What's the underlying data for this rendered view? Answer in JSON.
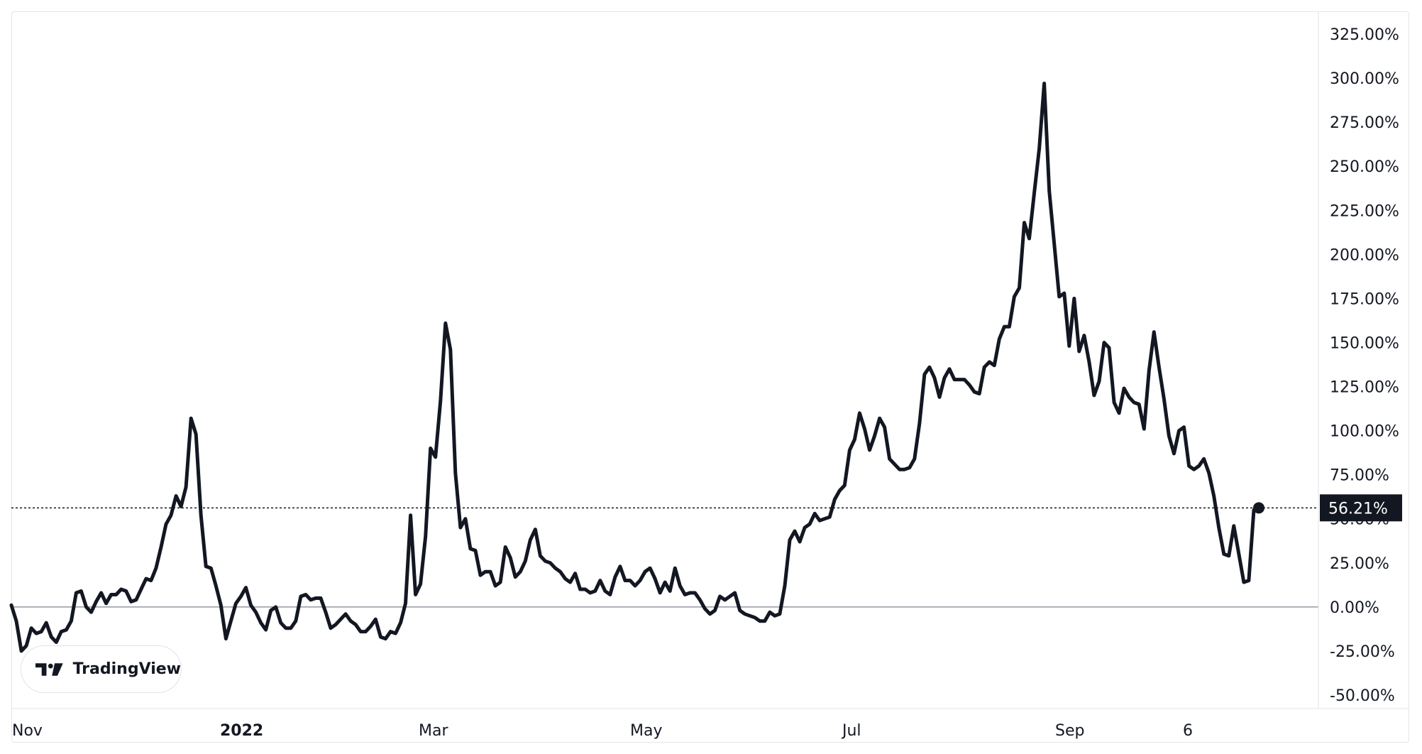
{
  "chart_data": {
    "type": "line",
    "title": "",
    "xlabel": "",
    "ylabel": "",
    "ylim": [
      -50,
      325
    ],
    "y_ticks": [
      "325.00%",
      "300.00%",
      "275.00%",
      "250.00%",
      "225.00%",
      "200.00%",
      "175.00%",
      "150.00%",
      "125.00%",
      "100.00%",
      "75.00%",
      "50.00%",
      "25.00%",
      "0.00%",
      "-25.00%",
      "-50.00%"
    ],
    "y_tick_values": [
      325,
      300,
      275,
      250,
      225,
      200,
      175,
      150,
      125,
      100,
      75,
      50,
      25,
      0,
      -25,
      -50
    ],
    "x_ticks": [
      {
        "label": "Nov",
        "date": "2021-11-01",
        "bold": false
      },
      {
        "label": "2022",
        "date": "2022-01-01",
        "bold": true
      },
      {
        "label": "Mar",
        "date": "2022-03-01",
        "bold": false
      },
      {
        "label": "May",
        "date": "2022-05-01",
        "bold": false
      },
      {
        "label": "Jul",
        "date": "2022-07-01",
        "bold": false
      },
      {
        "label": "Sep",
        "date": "2022-09-01",
        "bold": false
      },
      {
        "label": "6",
        "date": "2022-10-06",
        "bold": false
      }
    ],
    "x_range": [
      "2021-11-01",
      "2022-11-15"
    ],
    "last_value": 56.21,
    "last_value_label": "56.21%",
    "series_points": [
      [
        "2021-11-01",
        1
      ],
      [
        "2021-11-03",
        -8
      ],
      [
        "2021-11-05",
        -25
      ],
      [
        "2021-11-08",
        -22
      ],
      [
        "2021-11-10",
        -12
      ],
      [
        "2021-11-12",
        -15
      ],
      [
        "2021-11-14",
        -14
      ],
      [
        "2021-11-16",
        -9
      ],
      [
        "2021-11-18",
        -17
      ],
      [
        "2021-11-20",
        -20
      ],
      [
        "2021-11-22",
        -14
      ],
      [
        "2021-11-24",
        -13
      ],
      [
        "2021-11-26",
        -8
      ],
      [
        "2021-11-28",
        8
      ],
      [
        "2021-12-01",
        9
      ],
      [
        "2021-12-03",
        0
      ],
      [
        "2021-12-05",
        -3
      ],
      [
        "2021-12-07",
        3
      ],
      [
        "2021-12-09",
        8
      ],
      [
        "2021-12-10",
        2
      ],
      [
        "2021-12-12",
        7
      ],
      [
        "2021-12-14",
        7
      ],
      [
        "2021-12-16",
        10
      ],
      [
        "2021-12-18",
        9
      ],
      [
        "2021-12-20",
        3
      ],
      [
        "2021-12-22",
        4
      ],
      [
        "2021-12-24",
        10
      ],
      [
        "2021-12-26",
        16
      ],
      [
        "2021-12-28",
        15
      ],
      [
        "2021-12-30",
        22
      ],
      [
        "2022-01-01",
        34
      ],
      [
        "2022-01-03",
        47
      ],
      [
        "2022-01-05",
        52
      ],
      [
        "2022-01-07",
        63
      ],
      [
        "2022-01-09",
        57
      ],
      [
        "2022-01-11",
        68
      ],
      [
        "2022-01-13",
        107
      ],
      [
        "2022-01-15",
        98
      ],
      [
        "2022-01-17",
        52
      ],
      [
        "2022-01-19",
        23
      ],
      [
        "2022-01-21",
        22
      ],
      [
        "2022-01-23",
        12
      ],
      [
        "2022-01-25",
        1
      ],
      [
        "2022-01-27",
        -18
      ],
      [
        "2022-01-29",
        -8
      ],
      [
        "2022-01-31",
        2
      ],
      [
        "2022-02-02",
        6
      ],
      [
        "2022-02-04",
        11
      ],
      [
        "2022-02-06",
        1
      ],
      [
        "2022-02-08",
        -3
      ],
      [
        "2022-02-10",
        -9
      ],
      [
        "2022-02-12",
        -13
      ],
      [
        "2022-02-14",
        -2
      ],
      [
        "2022-02-16",
        0
      ],
      [
        "2022-02-18",
        -9
      ],
      [
        "2022-02-20",
        -12
      ],
      [
        "2022-02-22",
        -12
      ],
      [
        "2022-02-24",
        -8
      ],
      [
        "2022-02-26",
        6
      ],
      [
        "2022-02-28",
        7
      ],
      [
        "2022-03-02",
        4
      ],
      [
        "2022-03-04",
        5
      ],
      [
        "2022-03-06",
        5
      ],
      [
        "2022-03-08",
        -3
      ],
      [
        "2022-03-10",
        -12
      ],
      [
        "2022-03-12",
        -10
      ],
      [
        "2022-03-14",
        -7
      ],
      [
        "2022-03-16",
        -4
      ],
      [
        "2022-03-18",
        -8
      ],
      [
        "2022-03-20",
        -10
      ],
      [
        "2022-03-22",
        -14
      ],
      [
        "2022-03-24",
        -14
      ],
      [
        "2022-03-26",
        -11
      ],
      [
        "2022-03-28",
        -7
      ],
      [
        "2022-03-30",
        -17
      ],
      [
        "2022-04-01",
        -18
      ],
      [
        "2022-04-03",
        -14
      ],
      [
        "2022-04-05",
        -15
      ],
      [
        "2022-04-07",
        -9
      ],
      [
        "2022-04-09",
        2
      ],
      [
        "2022-04-11",
        52
      ],
      [
        "2022-04-13",
        7
      ],
      [
        "2022-04-15",
        13
      ],
      [
        "2022-04-17",
        40
      ],
      [
        "2022-04-19",
        90
      ],
      [
        "2022-04-21",
        85
      ],
      [
        "2022-04-23",
        117
      ],
      [
        "2022-04-25",
        161
      ],
      [
        "2022-04-27",
        146
      ],
      [
        "2022-04-29",
        76
      ],
      [
        "2022-05-01",
        45
      ],
      [
        "2022-05-03",
        50
      ],
      [
        "2022-05-05",
        33
      ],
      [
        "2022-05-07",
        32
      ],
      [
        "2022-05-09",
        18
      ],
      [
        "2022-05-11",
        20
      ],
      [
        "2022-05-13",
        20
      ],
      [
        "2022-05-15",
        12
      ],
      [
        "2022-05-17",
        14
      ],
      [
        "2022-05-19",
        34
      ],
      [
        "2022-05-21",
        28
      ],
      [
        "2022-05-23",
        17
      ],
      [
        "2022-05-25",
        20
      ],
      [
        "2022-05-27",
        26
      ],
      [
        "2022-05-29",
        38
      ],
      [
        "2022-05-31",
        44
      ],
      [
        "2022-06-02",
        29
      ],
      [
        "2022-06-04",
        26
      ],
      [
        "2022-06-06",
        25
      ],
      [
        "2022-06-08",
        22
      ],
      [
        "2022-06-10",
        20
      ],
      [
        "2022-06-12",
        16
      ],
      [
        "2022-06-14",
        14
      ],
      [
        "2022-06-16",
        19
      ],
      [
        "2022-06-18",
        10
      ],
      [
        "2022-06-20",
        10
      ],
      [
        "2022-06-22",
        8
      ],
      [
        "2022-06-24",
        9
      ],
      [
        "2022-06-26",
        15
      ],
      [
        "2022-06-28",
        9
      ],
      [
        "2022-06-30",
        7
      ],
      [
        "2022-07-02",
        17
      ],
      [
        "2022-07-04",
        23
      ],
      [
        "2022-07-06",
        15
      ],
      [
        "2022-07-08",
        15
      ],
      [
        "2022-07-10",
        12
      ],
      [
        "2022-07-12",
        15
      ],
      [
        "2022-07-14",
        20
      ],
      [
        "2022-07-16",
        22
      ],
      [
        "2022-07-18",
        16
      ],
      [
        "2022-07-20",
        8
      ],
      [
        "2022-07-22",
        14
      ],
      [
        "2022-07-24",
        9
      ],
      [
        "2022-07-26",
        22
      ],
      [
        "2022-07-28",
        12
      ],
      [
        "2022-07-30",
        7
      ],
      [
        "2022-08-01",
        8
      ],
      [
        "2022-08-03",
        8
      ],
      [
        "2022-08-05",
        4
      ],
      [
        "2022-08-07",
        -1
      ],
      [
        "2022-08-09",
        -4
      ],
      [
        "2022-08-11",
        -2
      ],
      [
        "2022-08-13",
        6
      ],
      [
        "2022-08-15",
        4
      ],
      [
        "2022-08-17",
        6
      ],
      [
        "2022-08-19",
        8
      ],
      [
        "2022-08-21",
        -2
      ],
      [
        "2022-08-23",
        -4
      ],
      [
        "2022-08-25",
        -5
      ],
      [
        "2022-08-27",
        -6
      ],
      [
        "2022-08-29",
        -8
      ],
      [
        "2022-08-31",
        -8
      ],
      [
        "2022-09-02",
        -3
      ],
      [
        "2022-09-04",
        -5
      ],
      [
        "2022-09-06",
        -4
      ],
      [
        "2022-09-08",
        12
      ],
      [
        "2022-09-10",
        38
      ],
      [
        "2022-09-12",
        43
      ],
      [
        "2022-09-14",
        37
      ],
      [
        "2022-09-16",
        45
      ],
      [
        "2022-09-18",
        47
      ],
      [
        "2022-09-20",
        53
      ],
      [
        "2022-09-22",
        49
      ],
      [
        "2022-09-24",
        50
      ],
      [
        "2022-09-26",
        51
      ],
      [
        "2022-09-28",
        61
      ],
      [
        "2022-09-30",
        66
      ],
      [
        "2022-10-02",
        69
      ],
      [
        "2022-10-04",
        89
      ],
      [
        "2022-10-06",
        95
      ],
      [
        "2022-10-08",
        110
      ],
      [
        "2022-10-10",
        101
      ],
      [
        "2022-10-12",
        89
      ],
      [
        "2022-10-14",
        97
      ],
      [
        "2022-10-16",
        107
      ],
      [
        "2022-10-18",
        102
      ],
      [
        "2022-10-20",
        84
      ],
      [
        "2022-10-22",
        81
      ],
      [
        "2022-10-24",
        78
      ],
      [
        "2022-10-26",
        78
      ],
      [
        "2022-10-28",
        79
      ],
      [
        "2022-10-30",
        84
      ],
      [
        "2022-11-01",
        104
      ],
      [
        "2022-11-03",
        132
      ],
      [
        "2022-11-05",
        136
      ],
      [
        "2022-11-07",
        130
      ],
      [
        "2022-11-09",
        119
      ],
      [
        "2022-11-11",
        130
      ],
      [
        "2022-11-13",
        135
      ],
      [
        "2022-11-15",
        129
      ]
    ],
    "note_series": "Series x positions are mapped in order onto the plot width; dates are approximate reading positions.",
    "series_values_tail": [
      129,
      129,
      126,
      122,
      121,
      136,
      139,
      137,
      152,
      159,
      159,
      176,
      181,
      218,
      209,
      235,
      260,
      297,
      236,
      206,
      176,
      178,
      148,
      175,
      145,
      154,
      139,
      120,
      128,
      150,
      147,
      116,
      110,
      124,
      119,
      116,
      115,
      101,
      134,
      156,
      136,
      118,
      97,
      87,
      100,
      102,
      80,
      78,
      80,
      84,
      76,
      63,
      45,
      30,
      29,
      46,
      30,
      14,
      15,
      55,
      56.21
    ]
  },
  "branding": {
    "logo_text": "TradingView"
  }
}
